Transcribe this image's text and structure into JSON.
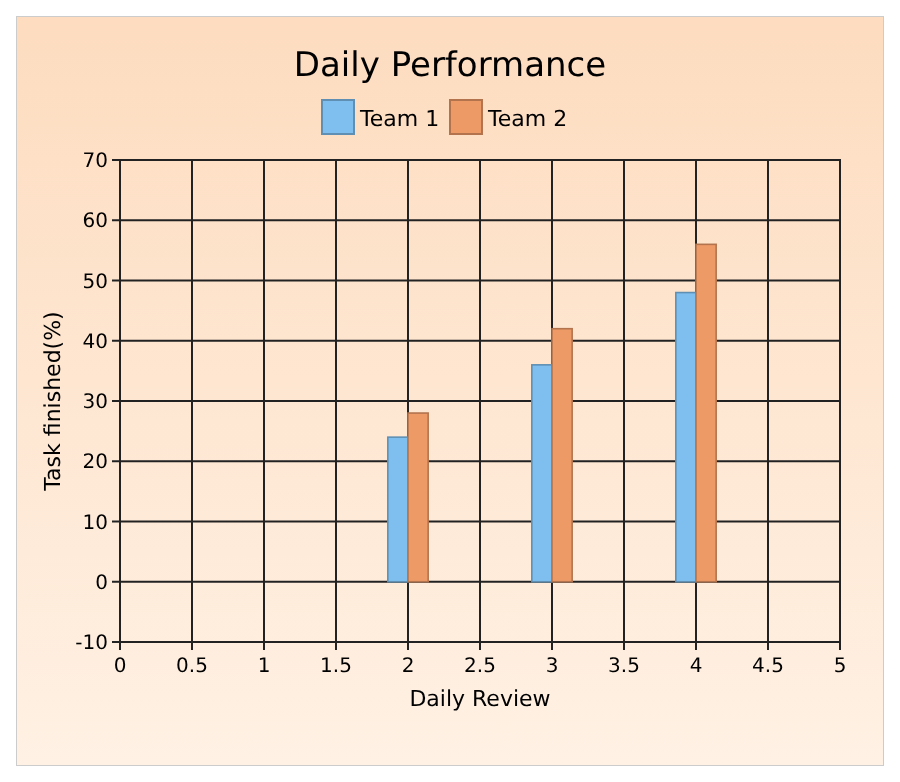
{
  "chart_data": {
    "type": "bar",
    "title": "Daily Performance",
    "xlabel": "Daily Review",
    "ylabel": "Task finished(%)",
    "x": [
      2,
      3,
      4
    ],
    "series": [
      {
        "name": "Team 1",
        "color": "#7fbfef",
        "values": [
          24,
          36,
          48
        ]
      },
      {
        "name": "Team 2",
        "color": "#ee9a66",
        "values": [
          28,
          42,
          56
        ]
      }
    ],
    "xlim": [
      0,
      5
    ],
    "xticks": [
      0,
      0.5,
      1,
      1.5,
      2,
      2.5,
      3,
      3.5,
      4,
      4.5,
      5
    ],
    "ylim": [
      -10,
      70
    ],
    "yticks": [
      -10,
      0,
      10,
      20,
      30,
      40,
      50,
      60,
      70
    ],
    "grid": true,
    "legend": "top"
  }
}
